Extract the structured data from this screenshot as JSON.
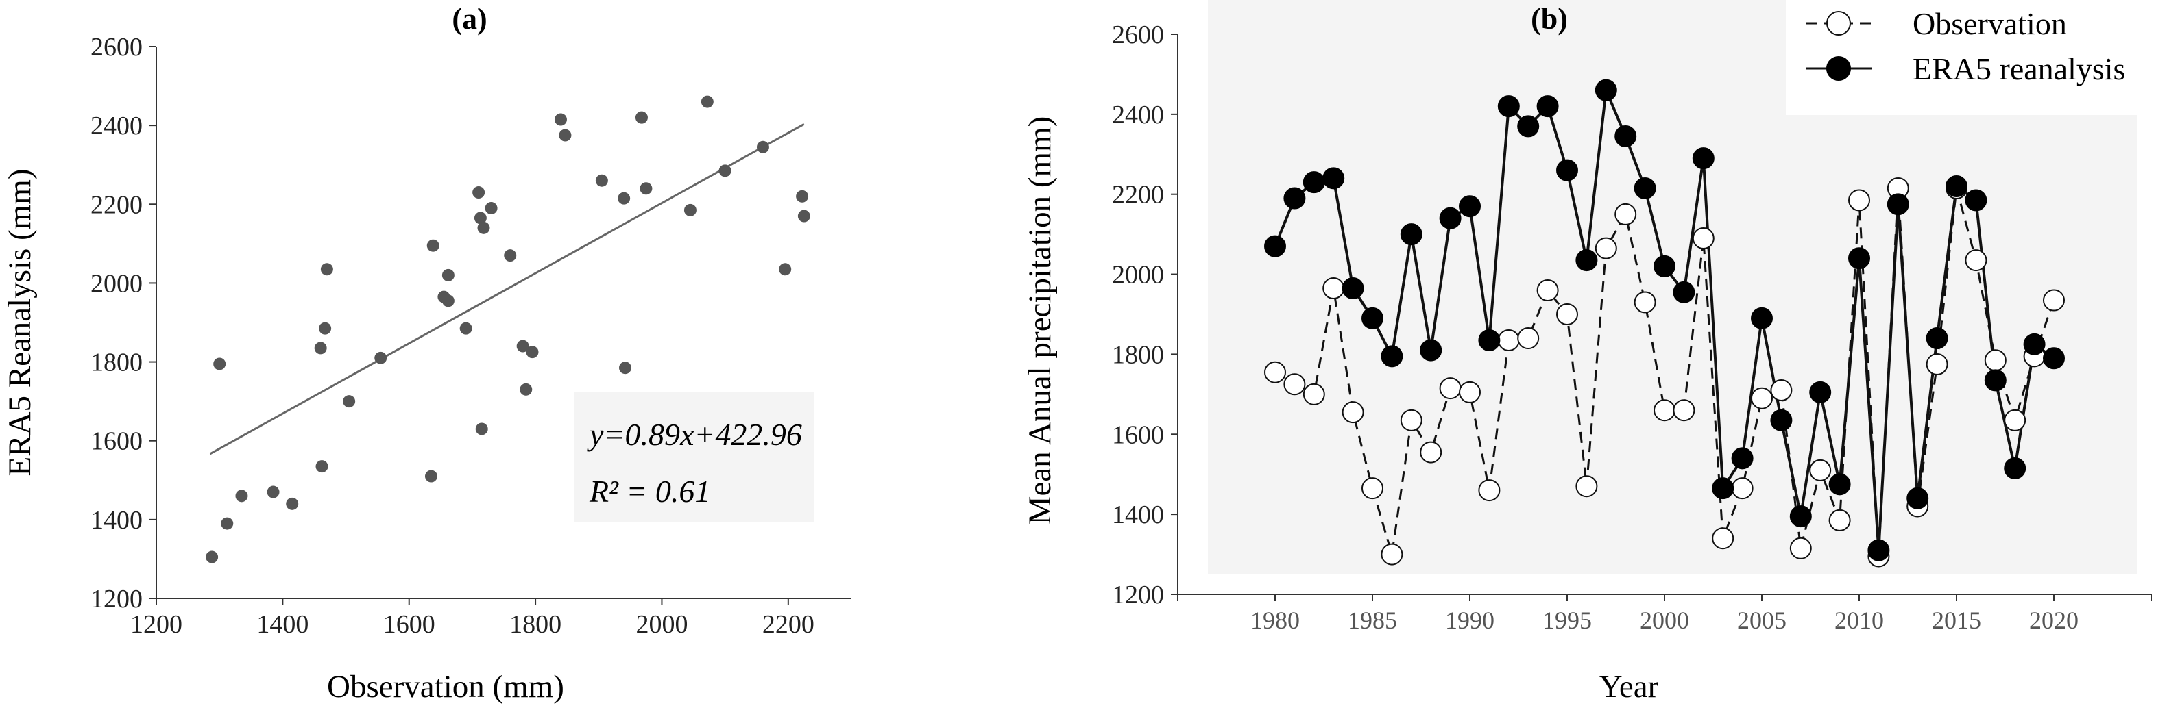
{
  "chart_data": [
    {
      "type": "scatter",
      "title": "(a)",
      "xlabel": "Observation (mm)",
      "ylabel": "ERA5 Reanalysis (mm)",
      "xlim": [
        1200,
        2300
      ],
      "ylim": [
        1200,
        2600
      ],
      "xticks": [
        1200,
        1400,
        1600,
        1800,
        2000,
        2200
      ],
      "yticks": [
        1200,
        1400,
        1600,
        1800,
        2000,
        2200,
        2400,
        2600
      ],
      "points": [
        {
          "x": 1288,
          "y": 1305
        },
        {
          "x": 1300,
          "y": 1795
        },
        {
          "x": 1312,
          "y": 1390
        },
        {
          "x": 1335,
          "y": 1460
        },
        {
          "x": 1385,
          "y": 1470
        },
        {
          "x": 1415,
          "y": 1440
        },
        {
          "x": 1460,
          "y": 1835
        },
        {
          "x": 1462,
          "y": 1535
        },
        {
          "x": 1467,
          "y": 1885
        },
        {
          "x": 1470,
          "y": 2035
        },
        {
          "x": 1505,
          "y": 1700
        },
        {
          "x": 1555,
          "y": 1810
        },
        {
          "x": 1635,
          "y": 1510
        },
        {
          "x": 1638,
          "y": 2095
        },
        {
          "x": 1655,
          "y": 1965
        },
        {
          "x": 1662,
          "y": 2020
        },
        {
          "x": 1662,
          "y": 1955
        },
        {
          "x": 1690,
          "y": 1885
        },
        {
          "x": 1710,
          "y": 2230
        },
        {
          "x": 1713,
          "y": 2165
        },
        {
          "x": 1715,
          "y": 1630
        },
        {
          "x": 1718,
          "y": 2140
        },
        {
          "x": 1730,
          "y": 2190
        },
        {
          "x": 1760,
          "y": 2070
        },
        {
          "x": 1780,
          "y": 1840
        },
        {
          "x": 1785,
          "y": 1730
        },
        {
          "x": 1795,
          "y": 1825
        },
        {
          "x": 1840,
          "y": 2415
        },
        {
          "x": 1847,
          "y": 2375
        },
        {
          "x": 1905,
          "y": 2260
        },
        {
          "x": 1940,
          "y": 2215
        },
        {
          "x": 1942,
          "y": 1785
        },
        {
          "x": 1968,
          "y": 2420
        },
        {
          "x": 1975,
          "y": 2240
        },
        {
          "x": 2045,
          "y": 2185
        },
        {
          "x": 2072,
          "y": 2460
        },
        {
          "x": 2100,
          "y": 2285
        },
        {
          "x": 2160,
          "y": 2345
        },
        {
          "x": 2195,
          "y": 2035
        },
        {
          "x": 2222,
          "y": 2220
        },
        {
          "x": 2225,
          "y": 2170
        }
      ],
      "trendline": {
        "slope": 0.89,
        "intercept": 422.96,
        "x_range": [
          1285,
          2225
        ]
      },
      "equation": "y=0.89x+422.96",
      "r2": "R² = 0.61",
      "grid": false
    },
    {
      "type": "line",
      "title": "(b)",
      "xlabel": "Year",
      "ylabel": "Mean Anual precipitation (mm)",
      "xlim": [
        1975,
        2025
      ],
      "ylim": [
        1200,
        2600
      ],
      "xticks": [
        1980,
        1985,
        1990,
        1995,
        2000,
        2005,
        2010,
        2015,
        2020
      ],
      "yticks": [
        1200,
        1400,
        1600,
        1800,
        2000,
        2200,
        2400,
        2600
      ],
      "legend_position": "top-right",
      "grid": false,
      "x": [
        1980,
        1981,
        1982,
        1983,
        1984,
        1985,
        1986,
        1987,
        1988,
        1989,
        1990,
        1991,
        1992,
        1993,
        1994,
        1995,
        1996,
        1997,
        1998,
        1999,
        2000,
        2001,
        2002,
        2003,
        2004,
        2005,
        2006,
        2007,
        2008,
        2009,
        2010,
        2011,
        2012,
        2013,
        2014,
        2015,
        2016,
        2017,
        2018,
        2019,
        2020
      ],
      "series": [
        {
          "name": "Observation",
          "style": "dashed-open-circle",
          "values": [
            1755,
            1725,
            1700,
            1965,
            1655,
            1465,
            1300,
            1635,
            1555,
            1715,
            1705,
            1460,
            1835,
            1840,
            1960,
            1900,
            1470,
            2065,
            2150,
            1930,
            1660,
            1660,
            2090,
            1340,
            1465,
            1690,
            1710,
            1315,
            1510,
            1385,
            2185,
            1295,
            2215,
            1420,
            1775,
            2215,
            2035,
            1785,
            1635,
            1795,
            1935
          ]
        },
        {
          "name": "ERA5 reanalysis",
          "style": "solid-filled-circle",
          "values": [
            2070,
            2190,
            2230,
            2240,
            1965,
            1890,
            1795,
            2100,
            1810,
            2140,
            2170,
            1835,
            2420,
            2370,
            2420,
            2260,
            2035,
            2460,
            2345,
            2215,
            2020,
            1955,
            2290,
            1465,
            1540,
            1890,
            1635,
            1395,
            1705,
            1475,
            2040,
            1310,
            2175,
            1440,
            1840,
            2220,
            2185,
            1735,
            1515,
            1825,
            1790
          ]
        }
      ]
    }
  ]
}
